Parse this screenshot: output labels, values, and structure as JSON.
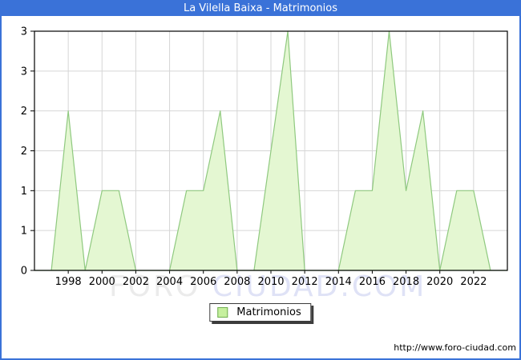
{
  "window": {
    "title": "La Vilella Baixa - Matrimonios"
  },
  "legend": {
    "label": "Matrimonios"
  },
  "watermark": {
    "part1": "FORO ",
    "part2": "CIUDAD.COM"
  },
  "footer": {
    "url": "http://www.foro-ciudad.com"
  },
  "colors": {
    "frame_blue": "#3A72D8",
    "title_text": "#FFFFFF",
    "area_fill": "#E4F7D2",
    "area_stroke": "#8FC97F",
    "legend_swatch_fill": "#C6F09E",
    "legend_swatch_border": "#6FAE4F",
    "grid": "#D6D6D6",
    "axis": "#000000",
    "watermark_gray": "#EBEBEB",
    "watermark_blue": "#DFE2F6"
  },
  "chart_data": {
    "type": "area",
    "title": "La Vilella Baixa - Matrimonios",
    "series_name": "Matrimonios",
    "x": [
      1996,
      1997,
      1998,
      1999,
      2000,
      2001,
      2002,
      2003,
      2004,
      2005,
      2006,
      2007,
      2008,
      2009,
      2010,
      2011,
      2012,
      2013,
      2014,
      2015,
      2016,
      2017,
      2018,
      2019,
      2020,
      2021,
      2022,
      2023,
      2024
    ],
    "values": [
      0,
      0,
      2,
      0,
      1,
      1,
      0,
      0,
      0,
      1,
      1,
      2,
      0,
      0,
      1.5,
      3,
      0,
      0,
      0,
      1,
      1,
      3,
      1,
      2,
      0,
      1,
      1,
      0,
      0
    ],
    "ylim": [
      0,
      3
    ],
    "xlim": [
      1996,
      2024
    ],
    "x_ticks": [
      1998,
      2000,
      2002,
      2004,
      2006,
      2008,
      2010,
      2012,
      2014,
      2016,
      2018,
      2020,
      2022
    ],
    "y_tick_values": [
      3,
      2.5,
      2,
      1.5,
      1,
      0.5,
      0
    ],
    "y_tick_labels": [
      "3",
      "3",
      "2",
      "2",
      "1",
      "1",
      "0"
    ],
    "y_grid_values": [
      0.5,
      1,
      1.5,
      2,
      2.5
    ],
    "grid": true,
    "legend_position": "bottom-center"
  }
}
